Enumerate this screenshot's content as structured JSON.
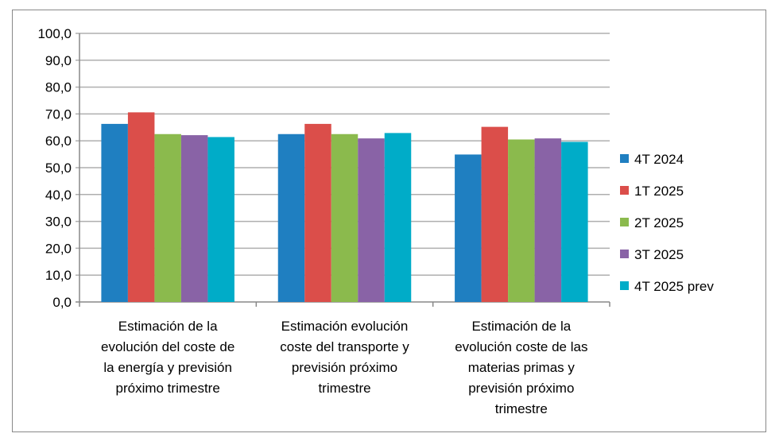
{
  "chart_data": {
    "type": "bar",
    "categories": [
      [
        "Estimación de la",
        "evolución del coste de",
        "la energía y previsión",
        "próximo trimestre"
      ],
      [
        "Estimación evolución",
        "coste del transporte y",
        "previsión próximo",
        "trimestre"
      ],
      [
        "Estimación de la",
        "evolución coste de las",
        "materias primas y",
        "previsión próximo",
        "trimestre"
      ]
    ],
    "series": [
      {
        "name": "4T 2024",
        "color": "#1F7FC1",
        "values": [
          66.3,
          62.5,
          54.9
        ]
      },
      {
        "name": "1T 2025",
        "color": "#DB4E4A",
        "values": [
          70.6,
          66.3,
          65.2
        ]
      },
      {
        "name": "2T 2025",
        "color": "#8BBA4D",
        "values": [
          62.5,
          62.5,
          60.5
        ]
      },
      {
        "name": "3T 2025",
        "color": "#8963A6",
        "values": [
          62.1,
          60.9,
          60.9
        ]
      },
      {
        "name": "4T 2025 prev",
        "color": "#00ACC8",
        "values": [
          61.4,
          62.9,
          59.6
        ]
      }
    ],
    "ylim": [
      0,
      100
    ],
    "yticks": [
      "0,0",
      "10,0",
      "20,0",
      "30,0",
      "40,0",
      "50,0",
      "60,0",
      "70,0",
      "80,0",
      "90,0",
      "100,0"
    ],
    "grid": true,
    "legend": "right"
  }
}
